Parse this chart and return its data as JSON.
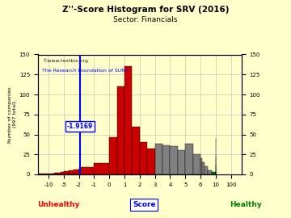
{
  "title": "Z''-Score Histogram for SRV (2016)",
  "subtitle": "Sector: Financials",
  "watermark1": "©www.textbiz.org",
  "watermark2": "The Research Foundation of SUNY",
  "total_label": "997 total",
  "xlabel_score": "Score",
  "xlabel_unhealthy": "Unhealthy",
  "xlabel_healthy": "Healthy",
  "ylabel": "Number of companies (997 total)",
  "marker_value": -1.9169,
  "marker_label": "-1.9169",
  "background_color": "#ffffcc",
  "grid_color": "#aaaaaa",
  "ylim": [
    0,
    150
  ],
  "yticks": [
    0,
    25,
    50,
    75,
    100,
    125,
    150
  ],
  "score_ticks": [
    -10,
    -5,
    -2,
    -1,
    0,
    1,
    2,
    3,
    4,
    5,
    6,
    10,
    100
  ],
  "display_positions": {
    "-10": 0,
    "-5": 1,
    "-2": 2,
    "-1": 3,
    "0": 4,
    "1": 5,
    "2": 6,
    "3": 7,
    "4": 8,
    "5": 9,
    "6": 10,
    "10": 11,
    "100": 12
  },
  "histogram_bars": [
    [
      -14,
      -13,
      1,
      "#cc0000"
    ],
    [
      -13,
      -12,
      2,
      "#cc0000"
    ],
    [
      -12,
      -11,
      2,
      "#cc0000"
    ],
    [
      -11,
      -10,
      1,
      "#cc0000"
    ],
    [
      -10,
      -9,
      1,
      "#cc0000"
    ],
    [
      -9,
      -8,
      1,
      "#cc0000"
    ],
    [
      -8,
      -7,
      2,
      "#cc0000"
    ],
    [
      -7,
      -6,
      2,
      "#cc0000"
    ],
    [
      -6,
      -5,
      3,
      "#cc0000"
    ],
    [
      -5,
      -4,
      4,
      "#cc0000"
    ],
    [
      -4,
      -3,
      5,
      "#cc0000"
    ],
    [
      -3,
      -2,
      6,
      "#cc0000"
    ],
    [
      -2,
      -1,
      9,
      "#cc0000"
    ],
    [
      -1,
      0,
      14,
      "#cc0000"
    ],
    [
      0,
      0.5,
      46,
      "#cc0000"
    ],
    [
      0.5,
      1.0,
      110,
      "#cc0000"
    ],
    [
      1.0,
      1.5,
      135,
      "#cc0000"
    ],
    [
      1.5,
      2.0,
      60,
      "#cc0000"
    ],
    [
      2.0,
      2.5,
      40,
      "#cc0000"
    ],
    [
      2.5,
      3.0,
      32,
      "#cc0000"
    ],
    [
      3.0,
      3.5,
      38,
      "#808080"
    ],
    [
      3.5,
      4.0,
      36,
      "#808080"
    ],
    [
      4.0,
      4.5,
      35,
      "#808080"
    ],
    [
      4.5,
      5.0,
      30,
      "#808080"
    ],
    [
      5.0,
      5.5,
      38,
      "#808080"
    ],
    [
      5.5,
      6.0,
      25,
      "#808080"
    ],
    [
      6.0,
      6.5,
      20,
      "#808080"
    ],
    [
      6.5,
      7.0,
      15,
      "#808080"
    ],
    [
      7.0,
      8.0,
      10,
      "#808080"
    ],
    [
      8.0,
      9.0,
      5,
      "#808080"
    ],
    [
      9.0,
      10.0,
      3,
      "#008000"
    ],
    [
      10.0,
      11.0,
      12,
      "#008000"
    ],
    [
      11.0,
      12.0,
      45,
      "#008000"
    ],
    [
      12.0,
      13.0,
      22,
      "#008000"
    ]
  ]
}
